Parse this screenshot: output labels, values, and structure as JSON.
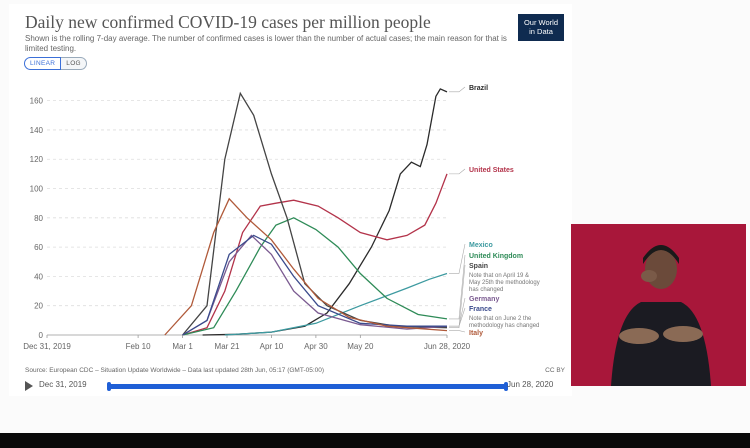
{
  "header": {
    "title": "Daily new confirmed COVID-19 cases per million people",
    "subtitle": "Shown is the rolling 7-day average. The number of confirmed cases is lower than the number of actual cases; the main reason for that is limited testing.",
    "logo_line1": "Our World",
    "logo_line2": "in Data"
  },
  "scale_toggle": {
    "linear_label": "LINEAR",
    "log_label": "LOG",
    "selected": "LINEAR"
  },
  "footer": {
    "source": "Source: European CDC – Situation Update Worldwide – Data last updated 28th Jun, 05:17 (GMT-05:00)",
    "license": "CC BY"
  },
  "timeline": {
    "start_label": "Dec 31, 2019",
    "end_label": "Jun 28, 2020"
  },
  "colors": {
    "brazil": "#2b2b2b",
    "united_states": "#b3334a",
    "mexico": "#3d9aa0",
    "united_kingdom": "#2e8b57",
    "spain": "#444444",
    "germany": "#7a5a90",
    "france": "#3a4a8c",
    "italy": "#b05a3a",
    "accent": "#1f5fd6",
    "video_bg": "#a8173a"
  },
  "chart_data": {
    "type": "line",
    "title": "Daily new confirmed COVID-19 cases per million people",
    "xlabel": "",
    "ylabel": "",
    "x_ticks": [
      "Dec 31, 2019",
      "Feb 10",
      "Mar 1",
      "Mar 21",
      "Apr 10",
      "Apr 30",
      "May 20",
      "Jun 28, 2020"
    ],
    "y_ticks": [
      0,
      20,
      40,
      60,
      80,
      100,
      120,
      140,
      160
    ],
    "ylim": [
      0,
      170
    ],
    "x_range": [
      "2019-12-31",
      "2020-06-28"
    ],
    "grid": true,
    "legend": "right",
    "note_spain": "Note that on April 19 & May 25th the methodology has changed",
    "note_france": "Note that on June 2 the methodology has changed",
    "series": [
      {
        "name": "Brazil",
        "key": "brazil",
        "points": [
          [
            "2020-03-10",
            0
          ],
          [
            "2020-03-25",
            0.5
          ],
          [
            "2020-04-10",
            2
          ],
          [
            "2020-04-25",
            6
          ],
          [
            "2020-05-05",
            15
          ],
          [
            "2020-05-15",
            35
          ],
          [
            "2020-05-25",
            60
          ],
          [
            "2020-06-02",
            85
          ],
          [
            "2020-06-07",
            110
          ],
          [
            "2020-06-12",
            118
          ],
          [
            "2020-06-16",
            115
          ],
          [
            "2020-06-19",
            130
          ],
          [
            "2020-06-23",
            163
          ],
          [
            "2020-06-25",
            168
          ],
          [
            "2020-06-28",
            166
          ]
        ]
      },
      {
        "name": "United States",
        "key": "united_states",
        "points": [
          [
            "2020-03-01",
            0
          ],
          [
            "2020-03-12",
            5
          ],
          [
            "2020-03-20",
            30
          ],
          [
            "2020-03-28",
            70
          ],
          [
            "2020-04-05",
            88
          ],
          [
            "2020-04-12",
            90
          ],
          [
            "2020-04-20",
            92
          ],
          [
            "2020-05-01",
            88
          ],
          [
            "2020-05-10",
            80
          ],
          [
            "2020-05-20",
            70
          ],
          [
            "2020-06-01",
            65
          ],
          [
            "2020-06-10",
            68
          ],
          [
            "2020-06-18",
            75
          ],
          [
            "2020-06-23",
            90
          ],
          [
            "2020-06-28",
            110
          ]
        ]
      },
      {
        "name": "Mexico",
        "key": "mexico",
        "points": [
          [
            "2020-03-20",
            0
          ],
          [
            "2020-04-10",
            2
          ],
          [
            "2020-04-30",
            8
          ],
          [
            "2020-05-20",
            20
          ],
          [
            "2020-06-10",
            32
          ],
          [
            "2020-06-20",
            38
          ],
          [
            "2020-06-28",
            42
          ]
        ]
      },
      {
        "name": "United Kingdom",
        "key": "united_kingdom",
        "points": [
          [
            "2020-03-01",
            0
          ],
          [
            "2020-03-15",
            5
          ],
          [
            "2020-03-25",
            30
          ],
          [
            "2020-04-05",
            60
          ],
          [
            "2020-04-12",
            75
          ],
          [
            "2020-04-20",
            80
          ],
          [
            "2020-04-30",
            72
          ],
          [
            "2020-05-10",
            60
          ],
          [
            "2020-05-20",
            42
          ],
          [
            "2020-06-01",
            25
          ],
          [
            "2020-06-15",
            14
          ],
          [
            "2020-06-28",
            11
          ]
        ]
      },
      {
        "name": "Spain",
        "key": "spain",
        "points": [
          [
            "2020-03-01",
            0
          ],
          [
            "2020-03-12",
            20
          ],
          [
            "2020-03-20",
            120
          ],
          [
            "2020-03-27",
            165
          ],
          [
            "2020-04-02",
            150
          ],
          [
            "2020-04-10",
            110
          ],
          [
            "2020-04-17",
            80
          ],
          [
            "2020-04-25",
            35
          ],
          [
            "2020-05-05",
            20
          ],
          [
            "2020-05-20",
            10
          ],
          [
            "2020-06-05",
            6
          ],
          [
            "2020-06-28",
            5
          ]
        ]
      },
      {
        "name": "Germany",
        "key": "germany",
        "points": [
          [
            "2020-03-01",
            0
          ],
          [
            "2020-03-12",
            10
          ],
          [
            "2020-03-22",
            50
          ],
          [
            "2020-04-01",
            68
          ],
          [
            "2020-04-10",
            55
          ],
          [
            "2020-04-20",
            30
          ],
          [
            "2020-05-01",
            15
          ],
          [
            "2020-05-20",
            7
          ],
          [
            "2020-06-10",
            4
          ],
          [
            "2020-06-28",
            6
          ]
        ]
      },
      {
        "name": "France",
        "key": "france",
        "points": [
          [
            "2020-03-01",
            0
          ],
          [
            "2020-03-12",
            10
          ],
          [
            "2020-03-22",
            55
          ],
          [
            "2020-04-02",
            68
          ],
          [
            "2020-04-10",
            62
          ],
          [
            "2020-04-20",
            40
          ],
          [
            "2020-05-01",
            20
          ],
          [
            "2020-05-20",
            8
          ],
          [
            "2020-06-10",
            6
          ],
          [
            "2020-06-28",
            6
          ]
        ]
      },
      {
        "name": "Italy",
        "key": "italy",
        "points": [
          [
            "2020-02-22",
            0
          ],
          [
            "2020-03-05",
            20
          ],
          [
            "2020-03-15",
            70
          ],
          [
            "2020-03-22",
            93
          ],
          [
            "2020-03-30",
            80
          ],
          [
            "2020-04-10",
            65
          ],
          [
            "2020-04-20",
            45
          ],
          [
            "2020-05-01",
            25
          ],
          [
            "2020-05-15",
            12
          ],
          [
            "2020-06-01",
            6
          ],
          [
            "2020-06-28",
            3
          ]
        ]
      }
    ]
  }
}
